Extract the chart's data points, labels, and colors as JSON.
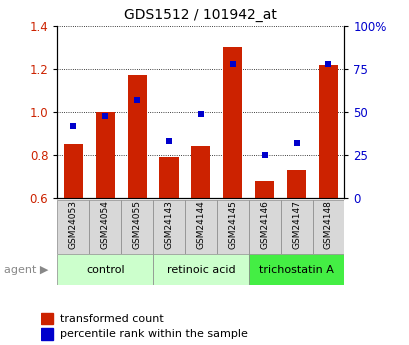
{
  "title": "GDS1512 / 101942_at",
  "samples": [
    "GSM24053",
    "GSM24054",
    "GSM24055",
    "GSM24143",
    "GSM24144",
    "GSM24145",
    "GSM24146",
    "GSM24147",
    "GSM24148"
  ],
  "bar_values": [
    0.85,
    1.0,
    1.17,
    0.79,
    0.845,
    1.3,
    0.68,
    0.73,
    1.22
  ],
  "scatter_values": [
    42,
    48,
    57,
    33,
    49,
    78,
    25,
    32,
    78
  ],
  "bar_color": "#cc2200",
  "scatter_color": "#0000cc",
  "ylim_left": [
    0.6,
    1.4
  ],
  "ylim_right": [
    0,
    100
  ],
  "yticks_left": [
    0.6,
    0.8,
    1.0,
    1.2,
    1.4
  ],
  "yticks_right": [
    0,
    25,
    50,
    75,
    100
  ],
  "yticklabels_right": [
    "0",
    "25",
    "50",
    "75",
    "100%"
  ],
  "group_labels": [
    "control",
    "retinoic acid",
    "trichostatin A"
  ],
  "group_starts": [
    0,
    3,
    6
  ],
  "group_ends": [
    3,
    6,
    9
  ],
  "group_colors": [
    "#ccffcc",
    "#ccffcc",
    "#44ee44"
  ],
  "agent_label": "agent",
  "legend1": "transformed count",
  "legend2": "percentile rank within the sample",
  "bar_width": 0.6,
  "ybaseline": 0.6,
  "sample_box_color": "#d8d8d8",
  "bg_color": "#ffffff"
}
